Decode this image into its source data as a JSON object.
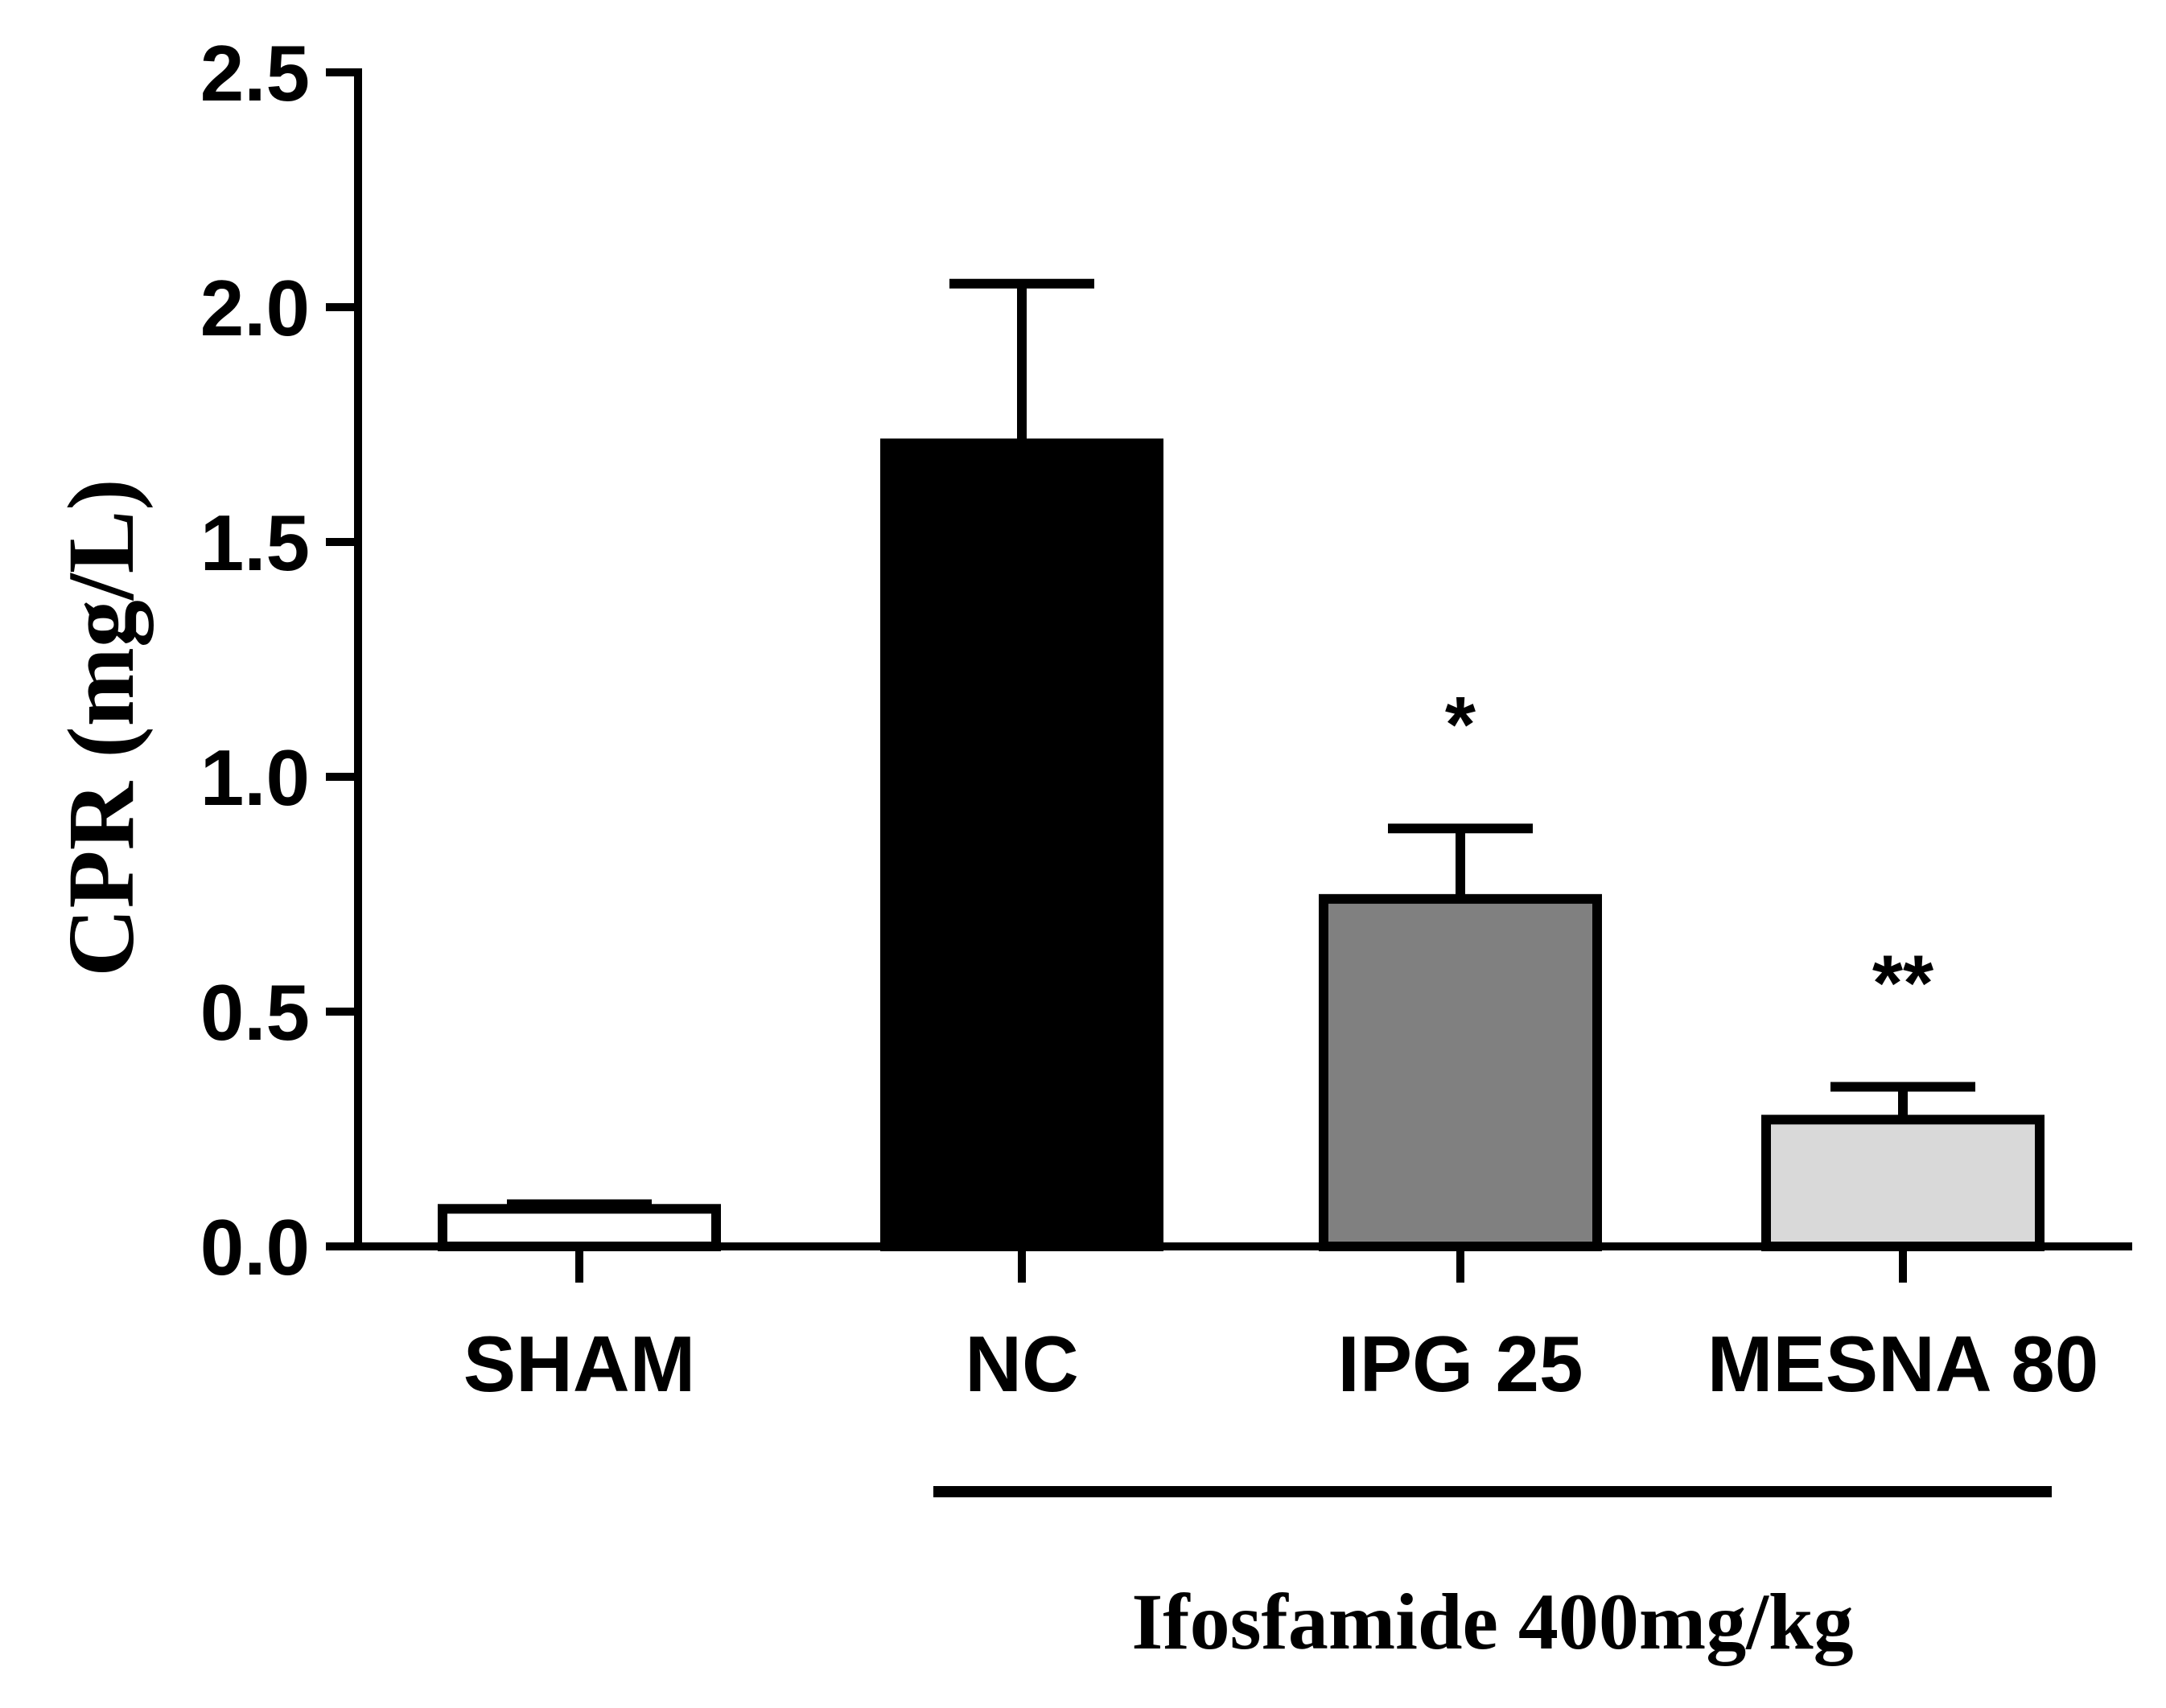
{
  "chart_data": {
    "type": "bar",
    "title": "",
    "xlabel": "",
    "ylabel": "CPR (mg/L)",
    "ylim": [
      0,
      2.5
    ],
    "yticks": [
      "0.0",
      "0.5",
      "1.0",
      "1.5",
      "2.0",
      "2.5"
    ],
    "yticks_values": [
      0,
      0.5,
      1.0,
      1.5,
      2.0,
      2.5
    ],
    "categories": [
      "SHAM",
      "NC",
      "IPG 25",
      "MESNA 80"
    ],
    "values": [
      0.08,
      1.71,
      0.74,
      0.27
    ],
    "errors": [
      0.01,
      0.34,
      0.15,
      0.07
    ],
    "significance": [
      "",
      "",
      "*",
      "**"
    ],
    "colors": [
      "#ffffff",
      "#000000",
      "#808080",
      "#d9d9d9"
    ],
    "group_bracket": {
      "label": "Ifosfamide 400mg/kg",
      "from_category": "NC",
      "to_category": "MESNA 80"
    }
  }
}
